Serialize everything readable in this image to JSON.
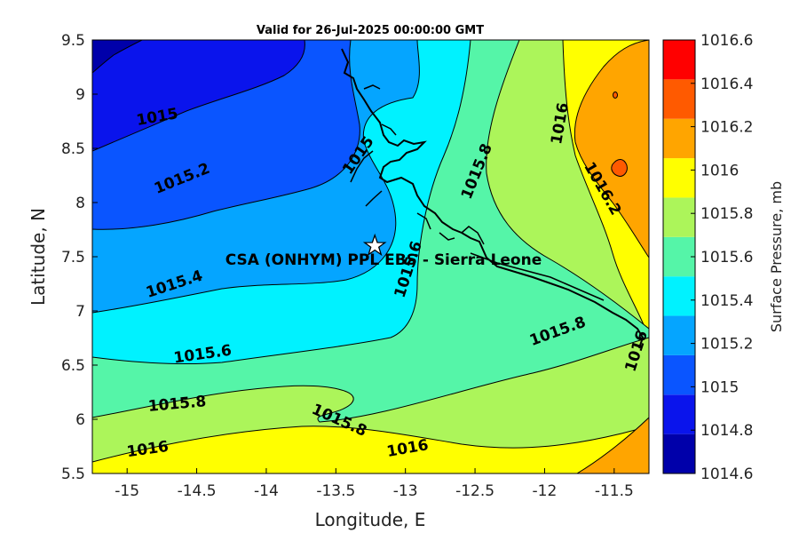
{
  "title": "Valid for 26-Jul-2025 00:00:00 GMT",
  "axes": {
    "xlabel": "Longitude, E",
    "ylabel": "Latitude, N",
    "xlim": [
      -15.25,
      -11.25
    ],
    "ylim": [
      5.5,
      9.5
    ],
    "xticks": [
      "-15",
      "-14.5",
      "-14",
      "-13.5",
      "-13",
      "-12.5",
      "-12",
      "-11.5"
    ],
    "yticks": [
      "5.5",
      "6",
      "6.5",
      "7",
      "7.5",
      "8",
      "8.5",
      "9",
      "9.5"
    ]
  },
  "site": {
    "label": "CSA (ONHYM) PPL EBS - Sierra Leone",
    "lon": -13.22,
    "lat": 7.6,
    "marker": "star-icon"
  },
  "colorbar": {
    "label": "Surface Pressure, mb",
    "levels": [
      "1014.6",
      "1014.8",
      "1015",
      "1015.2",
      "1015.4",
      "1015.6",
      "1015.8",
      "1016",
      "1016.2",
      "1016.4",
      "1016.6"
    ],
    "colors": [
      "#0000aa",
      "#0a14ec",
      "#0a55ff",
      "#05a5ff",
      "#00f2ff",
      "#55f5a8",
      "#acf55a",
      "#ffff00",
      "#ffa500",
      "#ff5a00",
      "#ff0000"
    ]
  },
  "contour_labels": [
    "1015",
    "1015.2",
    "1015.4",
    "1015.6",
    "1015.8",
    "1015.8",
    "1016",
    "1016",
    "1015",
    "1015.6",
    "1015.8",
    "1015.8",
    "1016",
    "1016.2",
    "1016"
  ],
  "chart_data": {
    "type": "heatmap",
    "title": "Valid for 26-Jul-2025 00:00:00 GMT",
    "xlabel": "Longitude, E",
    "ylabel": "Latitude, N",
    "xlim": [
      -15.25,
      -11.25
    ],
    "ylim": [
      5.5,
      9.5
    ],
    "colorbar_label": "Surface Pressure, mb",
    "colorbar_range": [
      1014.6,
      1016.6
    ]
  }
}
